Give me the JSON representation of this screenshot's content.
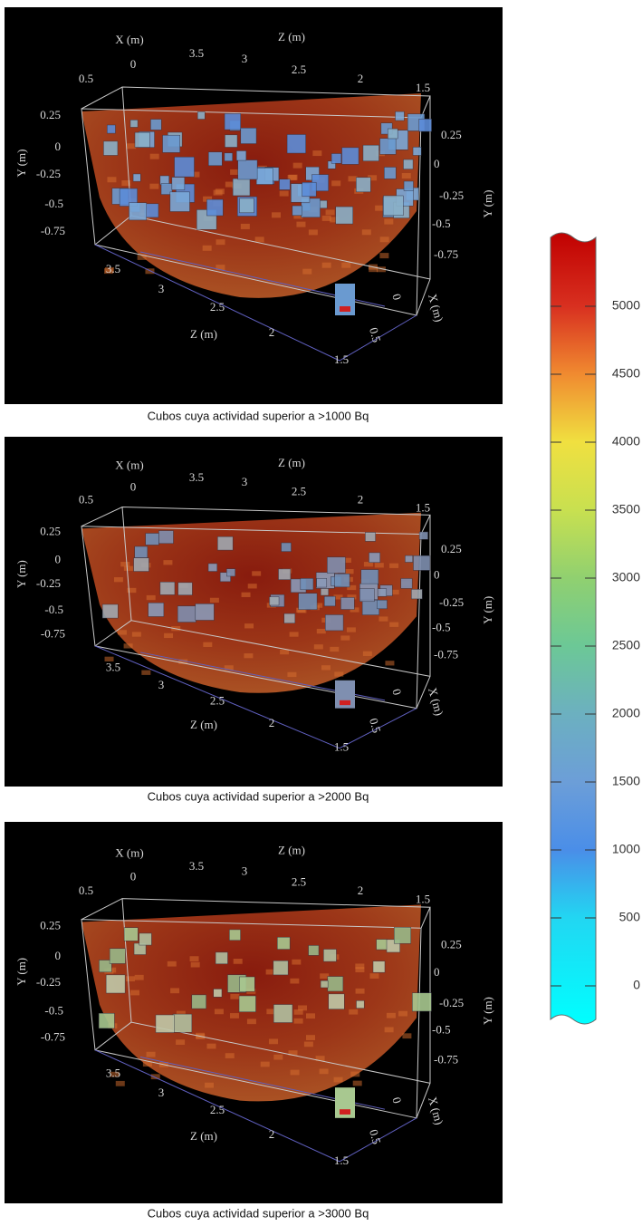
{
  "panels": [
    {
      "caption": "Cubos cuya actividad superior a >1000 Bq",
      "labels": [
        "X (m)",
        "Z (m)",
        "0.5",
        "0",
        "3.5",
        "3",
        "2.5",
        "2",
        "1.5",
        "0.25",
        "0",
        "-0.25",
        "-0.5",
        "-0.75",
        "Y (m)",
        "0.25",
        "0",
        "-0.25",
        "-0.5",
        "-0.75",
        "Y (m)",
        "3.5",
        "3",
        "2.5",
        "2",
        "Z (m)",
        "1.5",
        "0",
        "0.5",
        "X (m)"
      ]
    },
    {
      "caption": "Cubos cuya actividad superior a >2000 Bq",
      "labels": [
        "X (m)",
        "Z (m)",
        "0.5",
        "0",
        "3.5",
        "3",
        "2.5",
        "2",
        "1.5",
        "0.25",
        "0",
        "-0.25",
        "-0.5",
        "-0.75",
        "Y (m)",
        "0.25",
        "0",
        "-0.25",
        "-0.5",
        "-0.75",
        "Y (m)",
        "3.5",
        "3",
        "2.5",
        "2",
        "Z (m)",
        "1.5",
        "0",
        "0.5",
        "X (m)"
      ]
    },
    {
      "caption": "Cubos cuya actividad superior a >3000 Bq",
      "labels": [
        "X (m)",
        "Z (m)",
        "0.5",
        "0",
        "3.5",
        "3",
        "2.5",
        "2",
        "1.5",
        "0.25",
        "0",
        "-0.25",
        "-0.5",
        "-0.75",
        "Y (m)",
        "0.25",
        "0",
        "-0.25",
        "-0.5",
        "-0.75",
        "Y (m)",
        "3.5",
        "3",
        "2.5",
        "2",
        "Z (m)",
        "1.5",
        "0",
        "0.5",
        "X (m)"
      ]
    }
  ],
  "colorbar": {
    "ticks": [
      0,
      500,
      1000,
      1500,
      2000,
      2500,
      3000,
      3500,
      4000,
      4500,
      5000
    ]
  }
}
